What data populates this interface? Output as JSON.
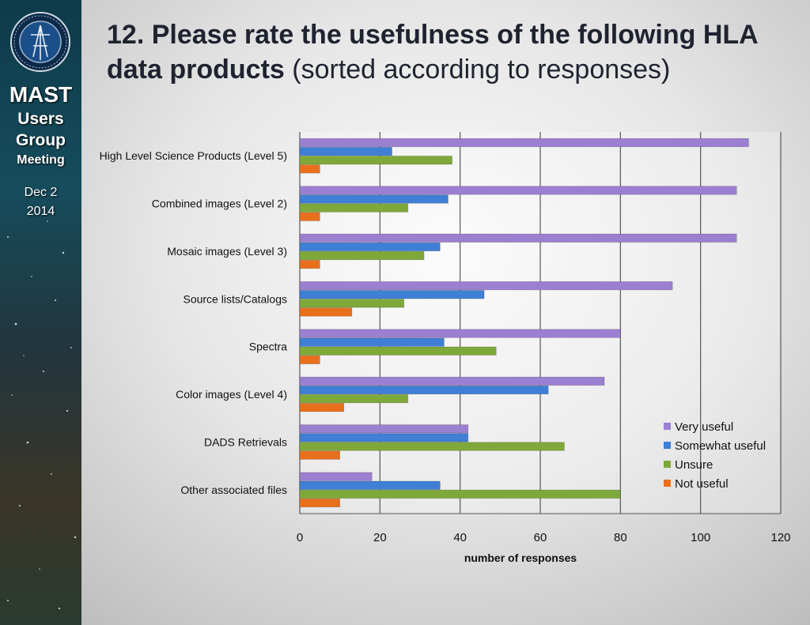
{
  "sidebar": {
    "logo_alt": "MAST logo",
    "brand_mast": "MAST",
    "brand_users": "Users",
    "brand_group": "Group",
    "brand_meeting": "Meeting",
    "date_line1": "Dec 2",
    "date_line2": "2014"
  },
  "title": {
    "bold": "12. Please rate the usefulness of the following HLA data products",
    "normal": " (sorted according to responses)"
  },
  "chart_data": {
    "type": "bar",
    "orientation": "horizontal",
    "categories": [
      "High Level Science Products (Level 5)",
      "Combined images (Level 2)",
      "Mosaic images (Level 3)",
      "Source lists/Catalogs",
      "Spectra",
      "Color images (Level 4)",
      "DADS Retrievals",
      "Other associated files"
    ],
    "series": [
      {
        "name": "Very useful",
        "color": "#9b7fd0",
        "values": [
          112,
          109,
          109,
          93,
          80,
          76,
          42,
          18
        ]
      },
      {
        "name": "Somewhat useful",
        "color": "#3f7fd6",
        "values": [
          23,
          37,
          35,
          46,
          36,
          62,
          42,
          35
        ]
      },
      {
        "name": "Unsure",
        "color": "#7fa83a",
        "values": [
          38,
          27,
          31,
          26,
          49,
          27,
          66,
          80
        ]
      },
      {
        "name": "Not useful",
        "color": "#e8701d",
        "values": [
          5,
          5,
          5,
          13,
          5,
          11,
          10,
          10
        ]
      }
    ],
    "xlabel": "number of responses",
    "xlim": [
      0,
      120
    ],
    "xticks": [
      0,
      20,
      40,
      60,
      80,
      100,
      120
    ],
    "grid": true,
    "legend_position": "bottom-right"
  }
}
